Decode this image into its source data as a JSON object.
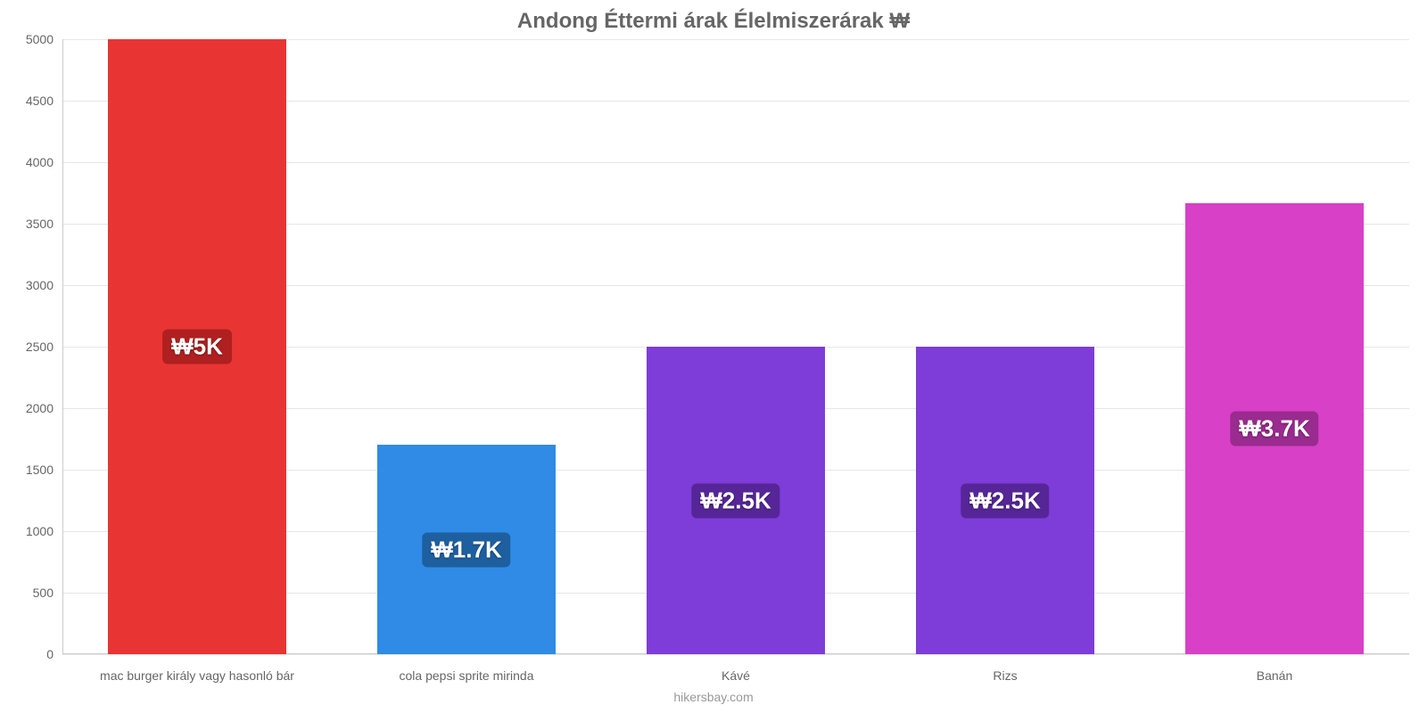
{
  "chart": {
    "type": "bar",
    "title": "Andong Éttermi árak Élelmiszerárak ₩",
    "title_color": "#666666",
    "title_fontsize": 24,
    "background_color": "#ffffff",
    "grid_color": "#e6e6e6",
    "axis_color": "#cccccc",
    "label_color": "#666666",
    "label_fontsize": 14,
    "value_label_fontsize": 26,
    "ylim": [
      0,
      5000
    ],
    "ytick_step": 500,
    "yticks": [
      0,
      500,
      1000,
      1500,
      2000,
      2500,
      3000,
      3500,
      4000,
      4500,
      5000
    ],
    "categories": [
      "mac burger király vagy hasonló bár",
      "cola pepsi sprite mirinda",
      "Kávé",
      "Rizs",
      "Banán"
    ],
    "values": [
      5000,
      1700,
      2500,
      2500,
      3670
    ],
    "value_labels": [
      "₩5K",
      "₩1.7K",
      "₩2.5K",
      "₩2.5K",
      "₩3.7K"
    ],
    "bar_colors": [
      "#e93434",
      "#2f8be6",
      "#7e3cd8",
      "#7e3cd8",
      "#d840c7"
    ],
    "badge_colors": [
      "#b02020",
      "#1e5fa0",
      "#562698",
      "#562698",
      "#9a2b8f"
    ],
    "bar_width": 0.66,
    "footer": "hikersbay.com",
    "footer_color": "#999999"
  }
}
